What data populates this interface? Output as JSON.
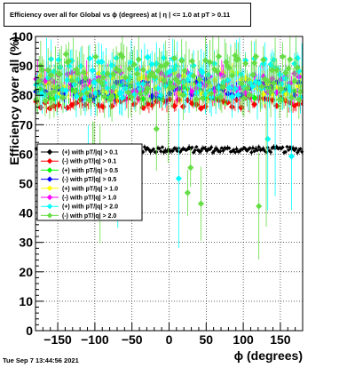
{
  "title": "Efficiency over all for Global vs ϕ (degrees) at |   η | <= 1.0 at pT > 0.11",
  "footer_date": "Tue Sep  7 13:44:56 2021",
  "chart_data": {
    "type": "scatter",
    "xlabel": "ϕ (degrees)",
    "ylabel": "Efficiency over all (%)",
    "xlim": [
      -180,
      180
    ],
    "ylim": [
      0,
      100
    ],
    "xticks": [
      -150,
      -100,
      -50,
      0,
      50,
      100,
      150
    ],
    "xtick_labels": [
      "−150",
      "−100",
      "−50",
      "0",
      "50",
      "100",
      "150"
    ],
    "yticks": [
      0,
      10,
      20,
      30,
      40,
      50,
      60,
      70,
      80,
      90,
      100
    ],
    "grid": true,
    "legend_position": "left-middle",
    "series": [
      {
        "name": "(+) with pT/|q| > 0.1",
        "color": "#000000",
        "marker": "diamond",
        "approx_level": 61.5,
        "spread": 1.0
      },
      {
        "name": "(-) with pT/|q| > 0.1",
        "color": "#ff0000",
        "marker": "diamond",
        "approx_level": 77.5,
        "spread": 2.0
      },
      {
        "name": "(+) with pT/|q| > 0.5",
        "color": "#00ff00",
        "marker": "diamond",
        "approx_level": 81.5,
        "spread": 3.0
      },
      {
        "name": "(-) with pT/|q| > 0.5",
        "color": "#0000ff",
        "marker": "diamond",
        "approx_level": 82.5,
        "spread": 3.0
      },
      {
        "name": "(+) with pT/|q| > 1.0",
        "color": "#ffff00",
        "marker": "diamond",
        "approx_level": 84.0,
        "spread": 4.0
      },
      {
        "name": "(-) with pT/|q| > 1.0",
        "color": "#ff00ff",
        "marker": "diamond",
        "approx_level": 84.5,
        "spread": 4.0
      },
      {
        "name": "(+) with pT/|q| > 2.0",
        "color": "#00ffff",
        "marker": "diamond",
        "approx_level": 86.0,
        "spread": 7.0
      },
      {
        "name": "(-) with pT/|q| > 2.0",
        "color": "#66dd44",
        "marker": "diamond",
        "approx_level": 86.0,
        "spread": 8.0
      }
    ]
  }
}
